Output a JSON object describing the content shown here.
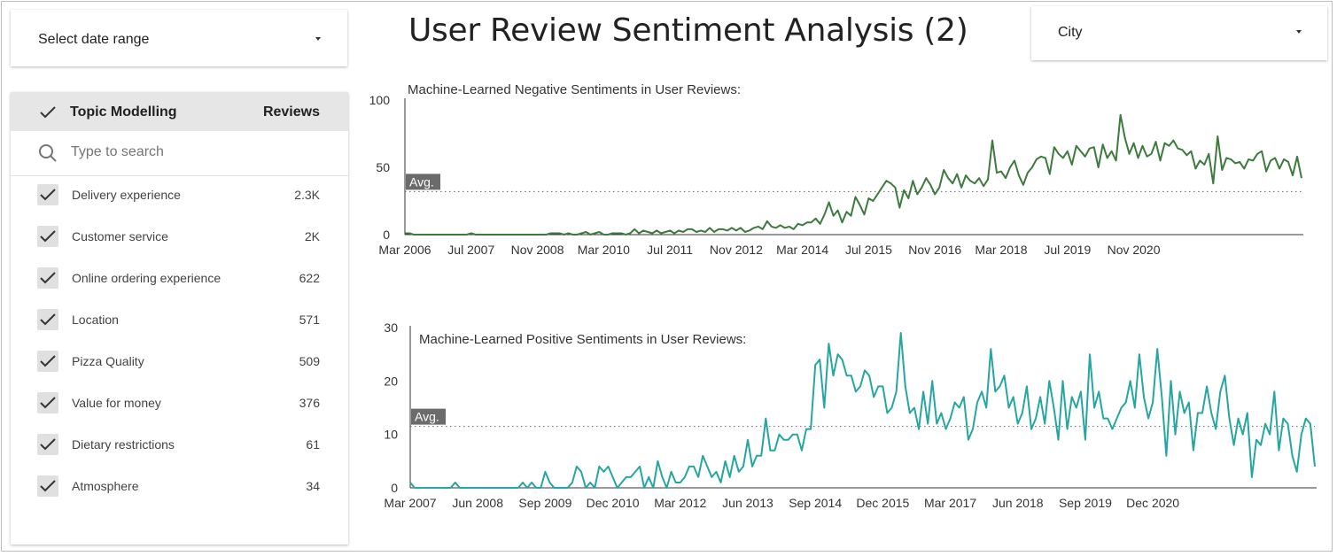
{
  "date_filter": {
    "label": "Select date range"
  },
  "city_filter": {
    "label": "City"
  },
  "page_title": "User Review Sentiment Analysis (2)",
  "topics": {
    "header_label": "Topic Modelling",
    "header_count": "Reviews",
    "search_placeholder": "Type to search",
    "items": [
      {
        "label": "Delivery experience",
        "count": "2.3K"
      },
      {
        "label": "Customer service",
        "count": "2K"
      },
      {
        "label": "Online ordering experience",
        "count": "622"
      },
      {
        "label": "Location",
        "count": "571"
      },
      {
        "label": "Pizza Quality",
        "count": "509"
      },
      {
        "label": "Value for money",
        "count": "376"
      },
      {
        "label": "Dietary restrictions",
        "count": "61"
      },
      {
        "label": "Atmosphere",
        "count": "34"
      }
    ]
  },
  "chart_data": [
    {
      "type": "line",
      "title": "Machine-Learned Negative Sentiments in User Reviews:",
      "color": "#3d7a3d",
      "start": "2006-03",
      "tick_labels": [
        "Mar 2006",
        "Jul 2007",
        "Nov 2008",
        "Mar 2010",
        "Jul 2011",
        "Nov 2012",
        "Mar 2014",
        "Jul 2015",
        "Nov 2016",
        "Mar 2018",
        "Jul 2019",
        "Nov 2020"
      ],
      "ylim": [
        0,
        100
      ],
      "y_ticks": [
        0,
        50,
        100
      ],
      "average": 32,
      "average_label": "Avg.",
      "values": [
        1,
        1,
        0,
        0,
        0,
        0,
        0,
        0,
        0,
        0,
        0,
        0,
        0,
        0,
        0,
        1,
        0,
        0,
        0,
        0,
        0,
        0,
        0,
        0,
        0,
        0,
        0,
        0,
        0,
        0,
        0,
        0,
        0,
        1,
        1,
        1,
        0,
        1,
        0,
        0,
        1,
        2,
        0,
        1,
        2,
        0,
        0,
        1,
        1,
        1,
        0,
        1,
        4,
        1,
        3,
        2,
        1,
        3,
        1,
        2,
        3,
        1,
        3,
        2,
        4,
        4,
        2,
        3,
        2,
        5,
        2,
        4,
        4,
        3,
        5,
        3,
        5,
        2,
        3,
        5,
        6,
        4,
        10,
        6,
        5,
        7,
        5,
        6,
        4,
        8,
        7,
        9,
        9,
        12,
        8,
        15,
        24,
        14,
        18,
        9,
        17,
        14,
        28,
        22,
        15,
        27,
        25,
        30,
        35,
        40,
        38,
        35,
        20,
        33,
        27,
        40,
        30,
        35,
        42,
        37,
        30,
        35,
        48,
        42,
        38,
        45,
        35,
        44,
        40,
        38,
        42,
        36,
        41,
        70,
        46,
        47,
        42,
        50,
        55,
        44,
        37,
        46,
        50,
        56,
        58,
        57,
        45,
        65,
        60,
        57,
        62,
        52,
        66,
        62,
        58,
        64,
        65,
        50,
        67,
        57,
        62,
        55,
        89,
        72,
        60,
        68,
        57,
        66,
        58,
        60,
        69,
        55,
        68,
        66,
        70,
        64,
        63,
        59,
        62,
        49,
        55,
        52,
        60,
        38,
        73,
        48,
        57,
        56,
        53,
        54,
        49,
        56,
        55,
        60,
        62,
        47,
        55,
        57,
        49,
        56,
        54,
        44,
        58,
        42
      ]
    },
    {
      "type": "line",
      "title": "Machine-Learned Positive Sentiments in User Reviews:",
      "color": "#26a6a0",
      "start": "2007-03",
      "tick_labels": [
        "Mar 2007",
        "Jun 2008",
        "Sep 2009",
        "Dec 2010",
        "Mar 2012",
        "Jun 2013",
        "Sep 2014",
        "Dec 2015",
        "Mar 2017",
        "Jun 2018",
        "Sep 2019",
        "Dec 2020"
      ],
      "ylim": [
        0,
        30
      ],
      "y_ticks": [
        0,
        10,
        20,
        30
      ],
      "average": 11.5,
      "average_label": "Avg.",
      "values": [
        1,
        0,
        0,
        0,
        0,
        0,
        0,
        0,
        0,
        0,
        1,
        0,
        0,
        0,
        0,
        0,
        0,
        0,
        0,
        0,
        0,
        0,
        0,
        0,
        0,
        1,
        0,
        1,
        0,
        0,
        3,
        1,
        0,
        0,
        0,
        0,
        1,
        4,
        3,
        0,
        1,
        0,
        4,
        3,
        4,
        2,
        0,
        1,
        2,
        2,
        3,
        4,
        0,
        2,
        0,
        5,
        2,
        0,
        3,
        1,
        1,
        2,
        4,
        4,
        2,
        6,
        4,
        2,
        3,
        1,
        5,
        2,
        6,
        3,
        4,
        9,
        4,
        6,
        6,
        13,
        7,
        7,
        10,
        9,
        9,
        10,
        10,
        7,
        11,
        11,
        23,
        24,
        15,
        27,
        21,
        25,
        24,
        21,
        21,
        18,
        19,
        22,
        21,
        17,
        19,
        19,
        14,
        15,
        18,
        29,
        19,
        14,
        15,
        11,
        18,
        12,
        20,
        12,
        14,
        11,
        13,
        16,
        15,
        17,
        9,
        11,
        16,
        18,
        15,
        26,
        18,
        19,
        21,
        15,
        17,
        12,
        14,
        19,
        11,
        13,
        17,
        12,
        20,
        15,
        9,
        20,
        11,
        17,
        15,
        18,
        9,
        25,
        15,
        18,
        13,
        13,
        11,
        13,
        15,
        16,
        20,
        15,
        25,
        17,
        13,
        16,
        26,
        17,
        6,
        20,
        10,
        18,
        14,
        16,
        7,
        14,
        14,
        19,
        14,
        11,
        18,
        21,
        13,
        8,
        13,
        10,
        14,
        2,
        9,
        8,
        12,
        10,
        18,
        7,
        13,
        12,
        6,
        3,
        10,
        13,
        12,
        4
      ]
    }
  ]
}
